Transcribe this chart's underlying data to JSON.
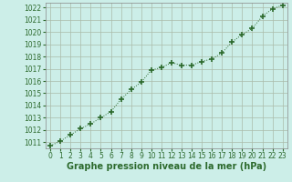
{
  "x": [
    0,
    1,
    2,
    3,
    4,
    5,
    6,
    7,
    8,
    9,
    10,
    11,
    12,
    13,
    14,
    15,
    16,
    17,
    18,
    19,
    20,
    21,
    22,
    23
  ],
  "y": [
    1010.7,
    1011.1,
    1011.6,
    1012.1,
    1012.5,
    1013.0,
    1013.5,
    1014.5,
    1015.3,
    1015.9,
    1016.9,
    1017.1,
    1017.5,
    1017.3,
    1017.3,
    1017.6,
    1017.8,
    1018.3,
    1019.2,
    1019.8,
    1020.3,
    1021.3,
    1021.9,
    1022.2
  ],
  "line_color": "#2d6a2d",
  "marker": "+",
  "marker_size": 4,
  "bg_color": "#cceee8",
  "grid_color": "#aabbaa",
  "xlabel": "Graphe pression niveau de la mer (hPa)",
  "ylim_min": 1010.5,
  "ylim_max": 1022.4,
  "yticks": [
    1011,
    1012,
    1013,
    1014,
    1015,
    1016,
    1017,
    1018,
    1019,
    1020,
    1021,
    1022
  ],
  "xticks": [
    0,
    1,
    2,
    3,
    4,
    5,
    6,
    7,
    8,
    9,
    10,
    11,
    12,
    13,
    14,
    15,
    16,
    17,
    18,
    19,
    20,
    21,
    22,
    23
  ],
  "xlabel_fontsize": 7,
  "xlabel_color": "#2d6a2d",
  "tick_fontsize": 5.5,
  "tick_color": "#2d6a2d"
}
